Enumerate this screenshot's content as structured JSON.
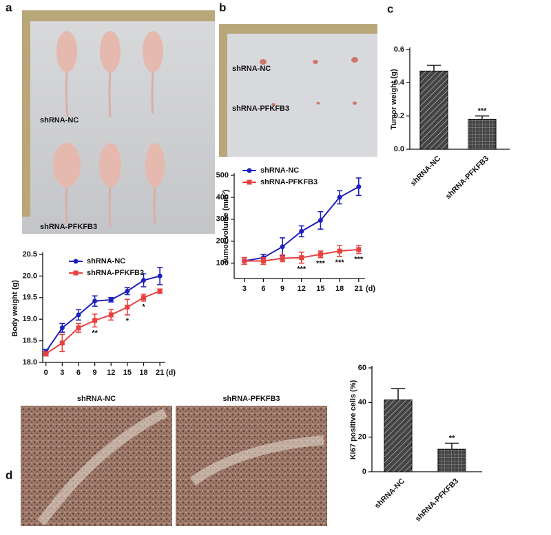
{
  "panels": [
    "a",
    "b",
    "c",
    "d"
  ],
  "photo_labels": {
    "a": [
      "shRNA-NC",
      "shRNA-PFKFB3"
    ],
    "b": [
      "shRNA-NC",
      "shRNA-PFKFB3"
    ],
    "d": [
      "shRNA-NC",
      "shRNA-PFKFB3"
    ]
  },
  "chart_data": [
    {
      "type": "line",
      "y_label": "Body weight (g)",
      "x_label": "(d)",
      "x": [
        0,
        3,
        6,
        9,
        12,
        15,
        18,
        21
      ],
      "xlim": [
        -0.6,
        22
      ],
      "xticks": [
        0,
        3,
        6,
        9,
        12,
        15,
        18,
        21
      ],
      "ylim": [
        18.0,
        20.5
      ],
      "yticks": [
        {
          "value": 18.0,
          "label": "18.0"
        },
        18.5,
        {
          "value": 19.0,
          "label": "19.0"
        },
        19.5,
        {
          "value": 20.0,
          "label": "20.0"
        },
        20.5
      ],
      "series": [
        {
          "name": "shRNA-NC",
          "color": "#1f1fbf",
          "values": [
            18.25,
            18.8,
            19.1,
            19.42,
            19.45,
            19.65,
            19.9,
            20.0
          ],
          "errors": [
            0.05,
            0.1,
            0.12,
            0.12,
            0.05,
            0.08,
            0.15,
            0.2
          ]
        },
        {
          "name": "shRNA-PFKFB3",
          "color": "#e8413f",
          "values": [
            18.2,
            18.45,
            18.8,
            18.97,
            19.1,
            19.28,
            19.5,
            19.65
          ],
          "errors": [
            0.05,
            0.2,
            0.1,
            0.15,
            0.12,
            0.18,
            0.08,
            0.05
          ]
        }
      ],
      "annotations": [
        {
          "x": 9,
          "text": "**"
        },
        {
          "x": 15,
          "text": "*"
        },
        {
          "x": 18,
          "text": "*"
        }
      ]
    },
    {
      "type": "line",
      "y_label": "Tumor volume (mm³)",
      "x_label": "(d)",
      "x": [
        3,
        6,
        9,
        12,
        15,
        18,
        21
      ],
      "xlim": [
        1.4,
        22
      ],
      "xticks": [
        3,
        6,
        9,
        12,
        15,
        18,
        21
      ],
      "ylim": [
        30,
        500
      ],
      "yticks": [
        100,
        200,
        300,
        400,
        500
      ],
      "series": [
        {
          "name": "shRNA-NC",
          "color": "#1f1fbf",
          "values": [
            110,
            125,
            175,
            245,
            295,
            400,
            448
          ],
          "errors": [
            15,
            15,
            40,
            25,
            40,
            30,
            40
          ]
        },
        {
          "name": "shRNA-PFKFB3",
          "color": "#e8413f",
          "values": [
            110,
            110,
            122,
            125,
            140,
            155,
            162
          ],
          "errors": [
            15,
            15,
            15,
            25,
            15,
            25,
            18
          ]
        }
      ],
      "annotations": [
        {
          "x": 12,
          "text": "***"
        },
        {
          "x": 15,
          "text": "***"
        },
        {
          "x": 18,
          "text": "***"
        },
        {
          "x": 21,
          "text": "***"
        }
      ]
    },
    {
      "type": "bar",
      "y_label": "Tumor weight (g)",
      "categories": [
        "shRNA-NC",
        "shRNA-PFKFB3"
      ],
      "values": [
        0.47,
        0.18
      ],
      "errors": [
        0.035,
        0.02
      ],
      "color": "#444444",
      "ylim": [
        0,
        0.6
      ],
      "yticks": [
        {
          "value": 0,
          "label": "0.0"
        },
        0.2,
        0.4,
        0.6
      ],
      "annotations": [
        {
          "index": 1,
          "text": "***"
        }
      ]
    },
    {
      "type": "bar",
      "y_label": "Ki67 positive cells (%)",
      "categories": [
        "shRNA-NC",
        "shRNA-PFKFB3"
      ],
      "values": [
        41.5,
        13
      ],
      "errors": [
        6.5,
        3.5
      ],
      "color": "#444444",
      "ylim": [
        0,
        60
      ],
      "yticks": [
        0,
        20,
        40,
        60
      ],
      "annotations": [
        {
          "index": 1,
          "text": "**"
        }
      ]
    }
  ]
}
